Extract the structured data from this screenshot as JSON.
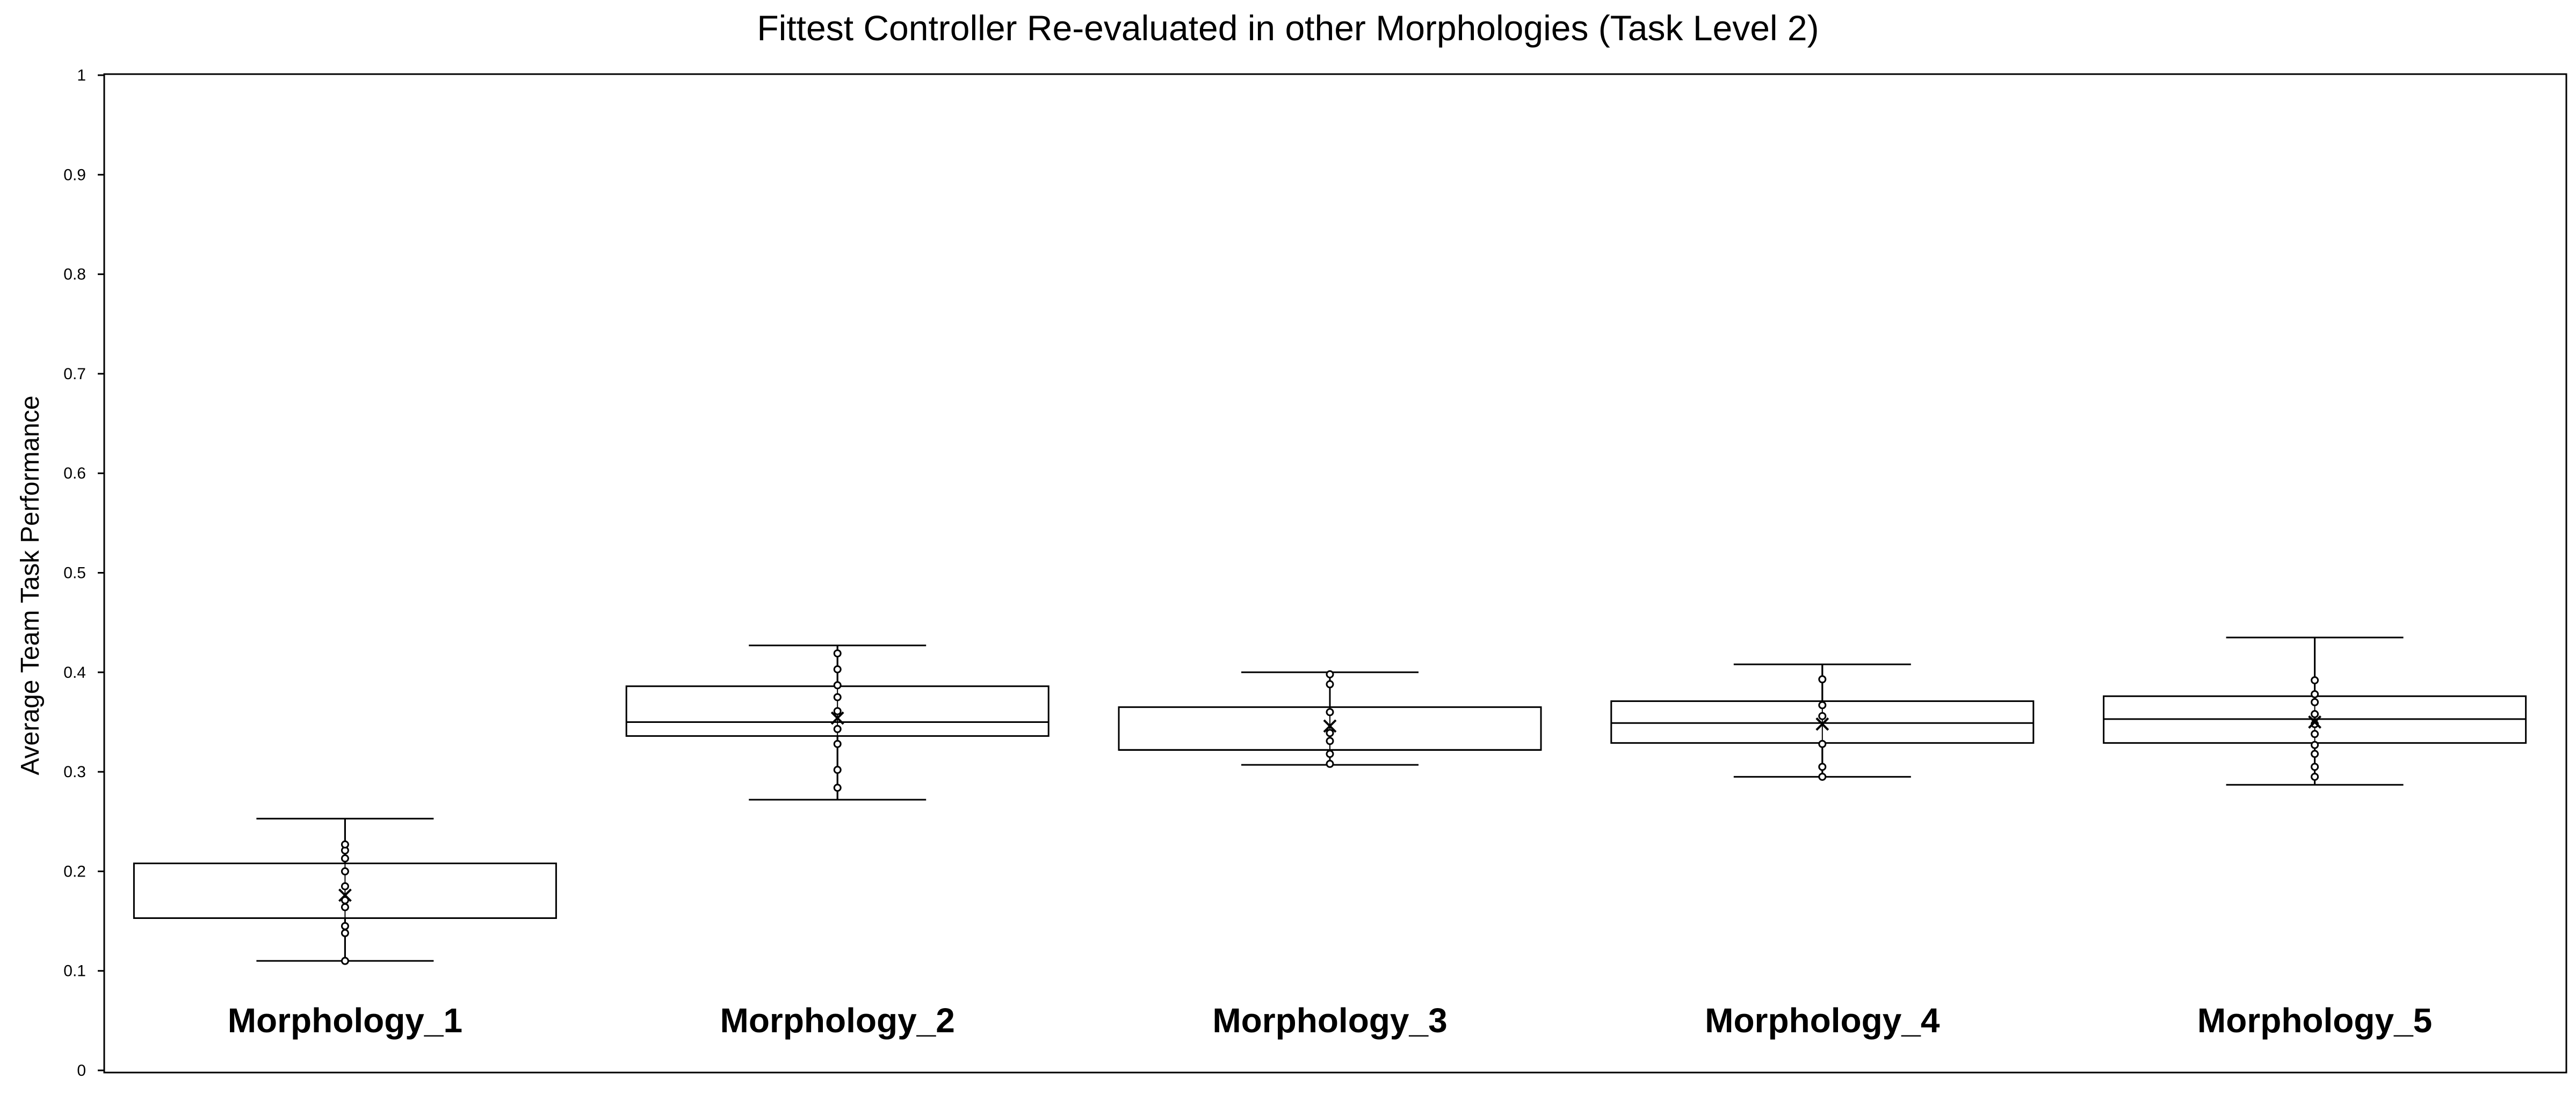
{
  "chart_data": {
    "type": "box",
    "title": "Fittest Controller Re-evaluated in other Morphologies (Task Level 2)",
    "xlabel": "",
    "ylabel": "Average Team Task Performance",
    "ylim": [
      0,
      1
    ],
    "yticks": [
      "0",
      "0.1",
      "0.2",
      "0.3",
      "0.4",
      "0.5",
      "0.6",
      "0.7",
      "0.8",
      "0.9",
      "1"
    ],
    "grid": false,
    "categories": [
      "Morphology_1",
      "Morphology_2",
      "Morphology_3",
      "Morphology_4",
      "Morphology_5"
    ],
    "boxes": [
      {
        "name": "Morphology_1",
        "min": 0.11,
        "q1": 0.153,
        "median": 0.153,
        "q3": 0.208,
        "max": 0.253,
        "mean": 0.176,
        "points": [
          0.11,
          0.138,
          0.145,
          0.164,
          0.171,
          0.185,
          0.2,
          0.213,
          0.221,
          0.227
        ]
      },
      {
        "name": "Morphology_2",
        "min": 0.272,
        "q1": 0.336,
        "median": 0.35,
        "q3": 0.386,
        "max": 0.427,
        "mean": 0.354,
        "points": [
          0.284,
          0.302,
          0.328,
          0.343,
          0.361,
          0.375,
          0.387,
          0.403,
          0.419
        ]
      },
      {
        "name": "Morphology_3",
        "min": 0.307,
        "q1": 0.322,
        "median": 0.322,
        "q3": 0.365,
        "max": 0.4,
        "mean": 0.346,
        "points": [
          0.308,
          0.318,
          0.331,
          0.339,
          0.36,
          0.388,
          0.398
        ]
      },
      {
        "name": "Morphology_4",
        "min": 0.295,
        "q1": 0.329,
        "median": 0.349,
        "q3": 0.371,
        "max": 0.408,
        "mean": 0.348,
        "points": [
          0.295,
          0.305,
          0.328,
          0.356,
          0.367,
          0.393
        ]
      },
      {
        "name": "Morphology_5",
        "min": 0.287,
        "q1": 0.329,
        "median": 0.353,
        "q3": 0.376,
        "max": 0.435,
        "mean": 0.35,
        "points": [
          0.295,
          0.305,
          0.318,
          0.327,
          0.338,
          0.348,
          0.358,
          0.37,
          0.378,
          0.392
        ]
      }
    ]
  }
}
